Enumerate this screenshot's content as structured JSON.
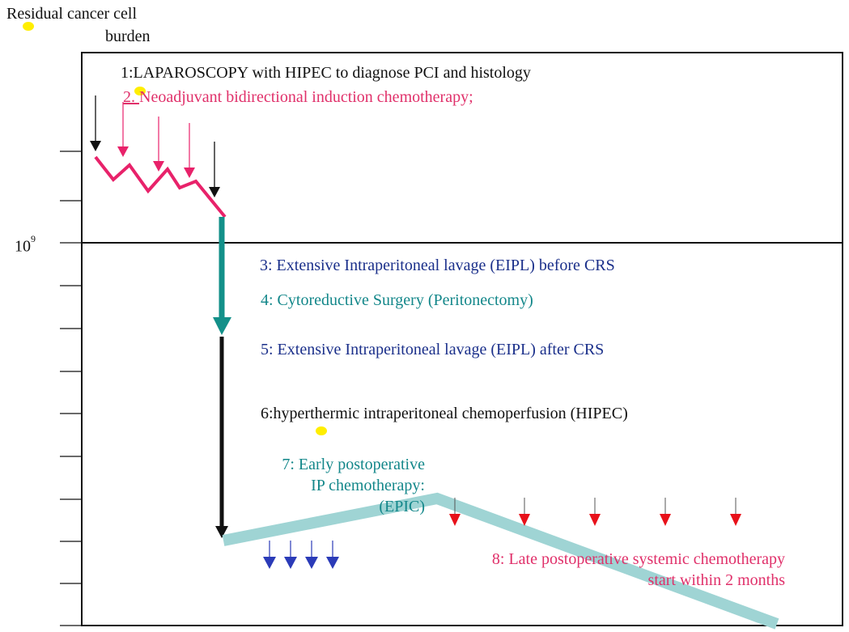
{
  "y_axis": {
    "title_line1": "Residual cancer cell",
    "title_line2": "burden",
    "tick_label_base": "10",
    "tick_label_exp": "9"
  },
  "steps": [
    {
      "id": 1,
      "text": "1:LAPAROSCOPY with HIPEC to diagnose PCI and histology",
      "color": "#111111"
    },
    {
      "id": 2,
      "text_num": "2. ",
      "text": "Neoadjuvant bidirectional induction chemotherapy;",
      "color": "#e0306a"
    },
    {
      "id": 3,
      "text": "3: Extensive Intraperitoneal lavage (EIPL)   before CRS",
      "color": "#1a2f8a"
    },
    {
      "id": 4,
      "text": "4: Cytoreductive Surgery (Peritonectomy)",
      "color": "#13878a"
    },
    {
      "id": 5,
      "text": "5: Extensive Intraperitoneal lavage (EIPL) after CRS",
      "color": "#1a2f8a"
    },
    {
      "id": 6,
      "text": "6:hyperthermic intraperitoneal chemoperfusion  (HIPEC)",
      "color": "#111111"
    },
    {
      "id": 7,
      "lines": [
        "7: Early postoperative",
        "IP chemotherapy:",
        "(EPIC)"
      ],
      "color": "#13878a"
    },
    {
      "id": 8,
      "lines": [
        "8: Late postoperative systemic chemotherapy",
        "start within 2 months"
      ],
      "color": "#e0306a"
    }
  ],
  "colors": {
    "black_arrow": "#111111",
    "induction_line": "#e8226a",
    "teal_arrow": "#139089",
    "epic_band": "#9fd4d4",
    "blue_arrow": "#2b3bb8",
    "red_arrow": "#e8111a",
    "highlight": "#ffee00"
  }
}
